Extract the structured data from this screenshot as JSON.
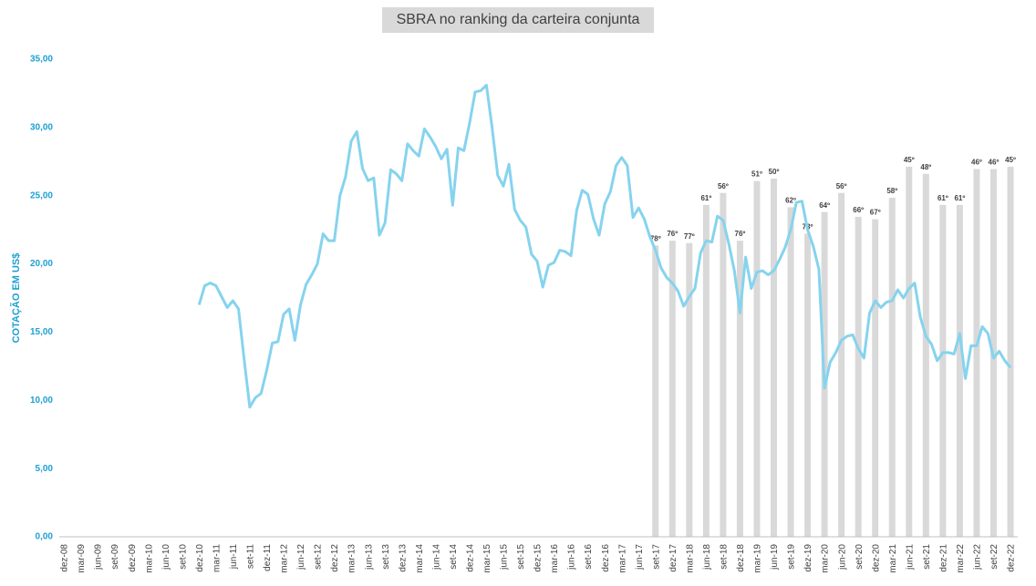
{
  "chart_data": {
    "type": "combo",
    "title": "SBRA no ranking da carteira conjunta",
    "y_axis_label": "COTAÇÃO EM US$",
    "ylim": [
      0,
      35
    ],
    "yticks": [
      {
        "value": 0,
        "label": "0,00"
      },
      {
        "value": 5,
        "label": "5,00"
      },
      {
        "value": 10,
        "label": "10,00"
      },
      {
        "value": 15,
        "label": "15,00"
      },
      {
        "value": 20,
        "label": "20,00"
      },
      {
        "value": 25,
        "label": "25,00"
      },
      {
        "value": 30,
        "label": "30,00"
      },
      {
        "value": 35,
        "label": "35,00"
      }
    ],
    "y2lim": [
      200,
      0
    ],
    "categories": [
      "dez-08",
      null,
      null,
      "mar-09",
      null,
      null,
      "jun-09",
      null,
      null,
      "set-09",
      null,
      null,
      "dez-09",
      null,
      null,
      "mar-10",
      null,
      null,
      "jun-10",
      null,
      null,
      "set-10",
      null,
      null,
      "dez-10",
      null,
      null,
      "mar-11",
      null,
      null,
      "jun-11",
      null,
      null,
      "set-11",
      null,
      null,
      "dez-11",
      null,
      null,
      "mar-12",
      null,
      null,
      "jun-12",
      null,
      null,
      "set-12",
      null,
      null,
      "dez-12",
      null,
      null,
      "mar-13",
      null,
      null,
      "jun-13",
      null,
      null,
      "set-13",
      null,
      null,
      "dez-13",
      null,
      null,
      "mar-14",
      null,
      null,
      "jun-14",
      null,
      null,
      "set-14",
      null,
      null,
      "dez-14",
      null,
      null,
      "mar-15",
      null,
      null,
      "jun-15",
      null,
      null,
      "set-15",
      null,
      null,
      "dez-15",
      null,
      null,
      "mar-16",
      null,
      null,
      "jun-16",
      null,
      null,
      "set-16",
      null,
      null,
      "dez-16",
      null,
      null,
      "mar-17",
      null,
      null,
      "jun-17",
      null,
      null,
      "set-17",
      null,
      null,
      "dez-17",
      null,
      null,
      "mar-18",
      null,
      null,
      "jun-18",
      null,
      null,
      "set-18",
      null,
      null,
      "dez-18",
      null,
      null,
      "mar-19",
      null,
      null,
      "jun-19",
      null,
      null,
      "set-19",
      null,
      null,
      "dez-19",
      null,
      null,
      "mar-20",
      null,
      null,
      "jun-20",
      null,
      null,
      "set-20",
      null,
      null,
      "dez-20",
      null,
      null,
      "mar-21",
      null,
      null,
      "jun-21",
      null,
      null,
      "set-21",
      null,
      null,
      "dez-21",
      null,
      null,
      "mar-22",
      null,
      null,
      "jun-22",
      null,
      null,
      "set-22",
      null,
      null,
      "dez-22"
    ],
    "series": [
      {
        "type": "line",
        "color": "#86d3ee",
        "values": [
          null,
          null,
          null,
          null,
          null,
          null,
          null,
          null,
          null,
          null,
          null,
          null,
          null,
          null,
          null,
          null,
          null,
          null,
          null,
          null,
          null,
          null,
          null,
          null,
          17.0,
          18.4,
          18.6,
          18.4,
          17.6,
          16.8,
          17.3,
          16.7,
          13.0,
          9.5,
          10.2,
          10.5,
          12.2,
          14.2,
          14.3,
          16.3,
          16.7,
          14.4,
          17.0,
          18.5,
          19.2,
          20.0,
          22.2,
          21.7,
          21.7,
          25.0,
          26.4,
          29.0,
          29.7,
          27.0,
          26.1,
          26.3,
          22.1,
          23.0,
          26.9,
          26.6,
          26.1,
          28.8,
          28.3,
          27.9,
          29.9,
          29.3,
          28.6,
          27.7,
          28.4,
          24.3,
          28.5,
          28.3,
          30.3,
          32.6,
          32.7,
          33.1,
          30.0,
          26.5,
          25.7,
          27.3,
          24.0,
          23.2,
          22.7,
          20.7,
          20.2,
          18.3,
          19.9,
          20.1,
          21.0,
          20.9,
          20.6,
          23.9,
          25.4,
          25.1,
          23.3,
          22.1,
          24.4,
          25.3,
          27.2,
          27.8,
          27.2,
          23.4,
          24.1,
          23.3,
          22.0,
          21.0,
          19.7,
          19.0,
          18.6,
          18.0,
          16.9,
          17.6,
          18.2,
          20.8,
          21.7,
          21.6,
          23.5,
          23.2,
          21.5,
          19.5,
          16.4,
          20.5,
          18.2,
          19.4,
          19.5,
          19.2,
          19.5,
          20.3,
          21.2,
          22.5,
          24.5,
          24.6,
          22.5,
          21.3,
          19.6,
          10.9,
          12.8,
          13.5,
          14.4,
          14.7,
          14.8,
          13.8,
          13.1,
          16.4,
          17.3,
          16.8,
          17.2,
          17.3,
          18.1,
          17.5,
          18.2,
          18.6,
          16.1,
          14.7,
          14.1,
          12.9,
          13.5,
          13.5,
          13.4,
          14.9,
          11.6,
          14.0,
          14.0,
          15.4,
          14.9,
          13.1,
          13.6,
          12.9,
          12.4
        ]
      },
      {
        "type": "bar",
        "axis": "y2",
        "color": "#d9d9d9",
        "values": [
          null,
          null,
          null,
          null,
          null,
          null,
          null,
          null,
          null,
          null,
          null,
          null,
          null,
          null,
          null,
          null,
          null,
          null,
          null,
          null,
          null,
          null,
          null,
          null,
          null,
          null,
          null,
          null,
          null,
          null,
          null,
          null,
          null,
          null,
          null,
          null,
          null,
          null,
          null,
          null,
          null,
          null,
          null,
          null,
          null,
          null,
          null,
          null,
          null,
          null,
          null,
          null,
          null,
          null,
          null,
          null,
          null,
          null,
          null,
          null,
          null,
          null,
          null,
          null,
          null,
          null,
          null,
          null,
          null,
          null,
          null,
          null,
          null,
          null,
          null,
          null,
          null,
          null,
          null,
          null,
          null,
          null,
          null,
          null,
          null,
          null,
          null,
          null,
          null,
          null,
          null,
          null,
          null,
          null,
          null,
          null,
          null,
          null,
          null,
          null,
          null,
          null,
          null,
          null,
          null,
          78,
          null,
          null,
          76,
          null,
          null,
          77,
          null,
          null,
          61,
          null,
          null,
          56,
          null,
          null,
          76,
          null,
          null,
          51,
          null,
          null,
          50,
          null,
          null,
          62,
          null,
          null,
          73,
          null,
          null,
          64,
          null,
          null,
          56,
          null,
          null,
          66,
          null,
          null,
          67,
          null,
          null,
          58,
          null,
          null,
          45,
          null,
          null,
          48,
          null,
          null,
          61,
          null,
          null,
          61,
          null,
          null,
          46,
          null,
          null,
          46,
          null,
          null,
          45
        ],
        "value_labels": [
          null,
          null,
          null,
          null,
          null,
          null,
          null,
          null,
          null,
          null,
          null,
          null,
          null,
          null,
          null,
          null,
          null,
          null,
          null,
          null,
          null,
          null,
          null,
          null,
          null,
          null,
          null,
          null,
          null,
          null,
          null,
          null,
          null,
          null,
          null,
          null,
          null,
          null,
          null,
          null,
          null,
          null,
          null,
          null,
          null,
          null,
          null,
          null,
          null,
          null,
          null,
          null,
          null,
          null,
          null,
          null,
          null,
          null,
          null,
          null,
          null,
          null,
          null,
          null,
          null,
          null,
          null,
          null,
          null,
          null,
          null,
          null,
          null,
          null,
          null,
          null,
          null,
          null,
          null,
          null,
          null,
          null,
          null,
          null,
          null,
          null,
          null,
          null,
          null,
          null,
          null,
          null,
          null,
          null,
          null,
          null,
          null,
          null,
          null,
          null,
          null,
          null,
          null,
          null,
          null,
          "78º",
          null,
          null,
          "76º",
          null,
          null,
          "77º",
          null,
          null,
          "61º",
          null,
          null,
          "56º",
          null,
          null,
          "76º",
          null,
          null,
          "51º",
          null,
          null,
          "50º",
          null,
          null,
          "62º",
          null,
          null,
          "73º",
          null,
          null,
          "64º",
          null,
          null,
          "56º",
          null,
          null,
          "66º",
          null,
          null,
          "67º",
          null,
          null,
          "58º",
          null,
          null,
          "45º",
          null,
          null,
          "48º",
          null,
          null,
          "61º",
          null,
          null,
          "61º",
          null,
          null,
          "46º",
          null,
          null,
          "46º",
          null,
          null,
          "45º"
        ]
      }
    ]
  }
}
